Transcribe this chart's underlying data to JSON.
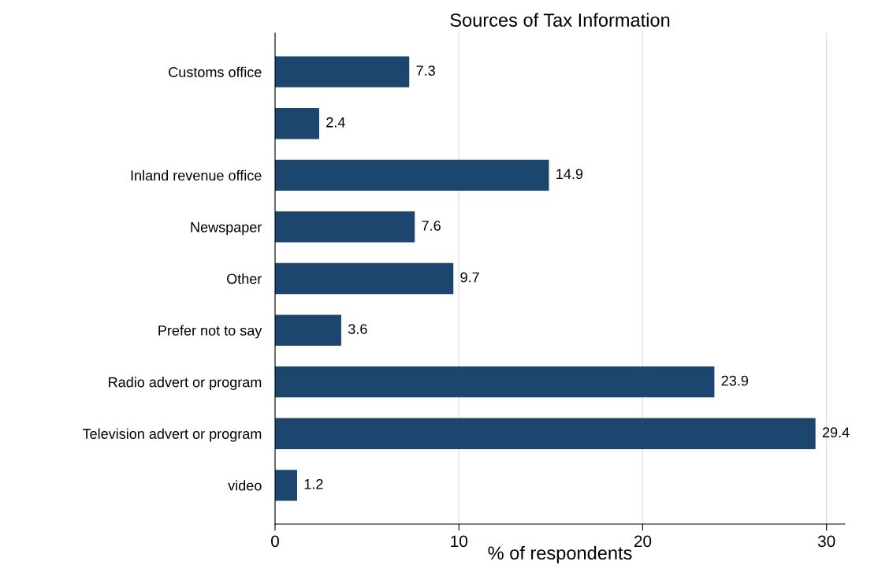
{
  "chart_data": {
    "type": "bar",
    "orientation": "horizontal",
    "title": "Sources of Tax Information",
    "xlabel": "% of respondents",
    "categories": [
      "Customs office",
      null,
      "Inland revenue office",
      "Newspaper",
      "Other",
      "Prefer not to say",
      "Radio advert or program",
      "Television advert or program",
      "video"
    ],
    "values": [
      7.3,
      2.4,
      14.9,
      7.6,
      9.7,
      3.6,
      23.9,
      29.4,
      1.2
    ],
    "color": "#1c466d",
    "data_labels": true,
    "xlim": [
      0,
      31
    ],
    "xticks": [
      0,
      10,
      20,
      30
    ],
    "grid": "x",
    "legend": false
  }
}
